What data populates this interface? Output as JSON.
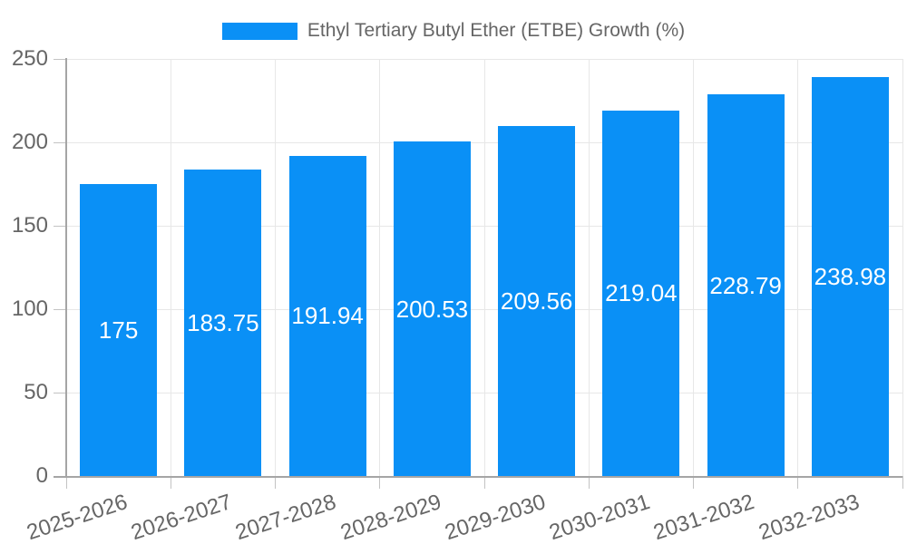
{
  "chart_data": {
    "type": "bar",
    "title": "Ethyl Tertiary Butyl Ether (ETBE) Growth (%)",
    "categories": [
      "2025-2026",
      "2026-2027",
      "2027-2028",
      "2028-2029",
      "2029-2030",
      "2030-2031",
      "2031-2032",
      "2032-2033"
    ],
    "values": [
      175,
      183.75,
      191.94,
      200.53,
      209.56,
      219.04,
      228.79,
      238.98
    ],
    "value_labels": [
      "175",
      "183.75",
      "191.94",
      "200.53",
      "209.56",
      "219.04",
      "228.79",
      "238.98"
    ],
    "xlabel": "",
    "ylabel": "",
    "ylim": [
      0,
      250
    ],
    "yticks": [
      0,
      50,
      100,
      150,
      200,
      250
    ],
    "grid": true,
    "legend_position": "top-center",
    "value_label_position": "center-of-bar"
  },
  "colors": {
    "bar": "#0A90F6",
    "grid": "#E7E7E7",
    "tick": "#C3C3C3",
    "axis": "#A5A5A5",
    "label_text": "#666666",
    "value_text": "#FFFFFF",
    "background": "#FFFFFF"
  }
}
